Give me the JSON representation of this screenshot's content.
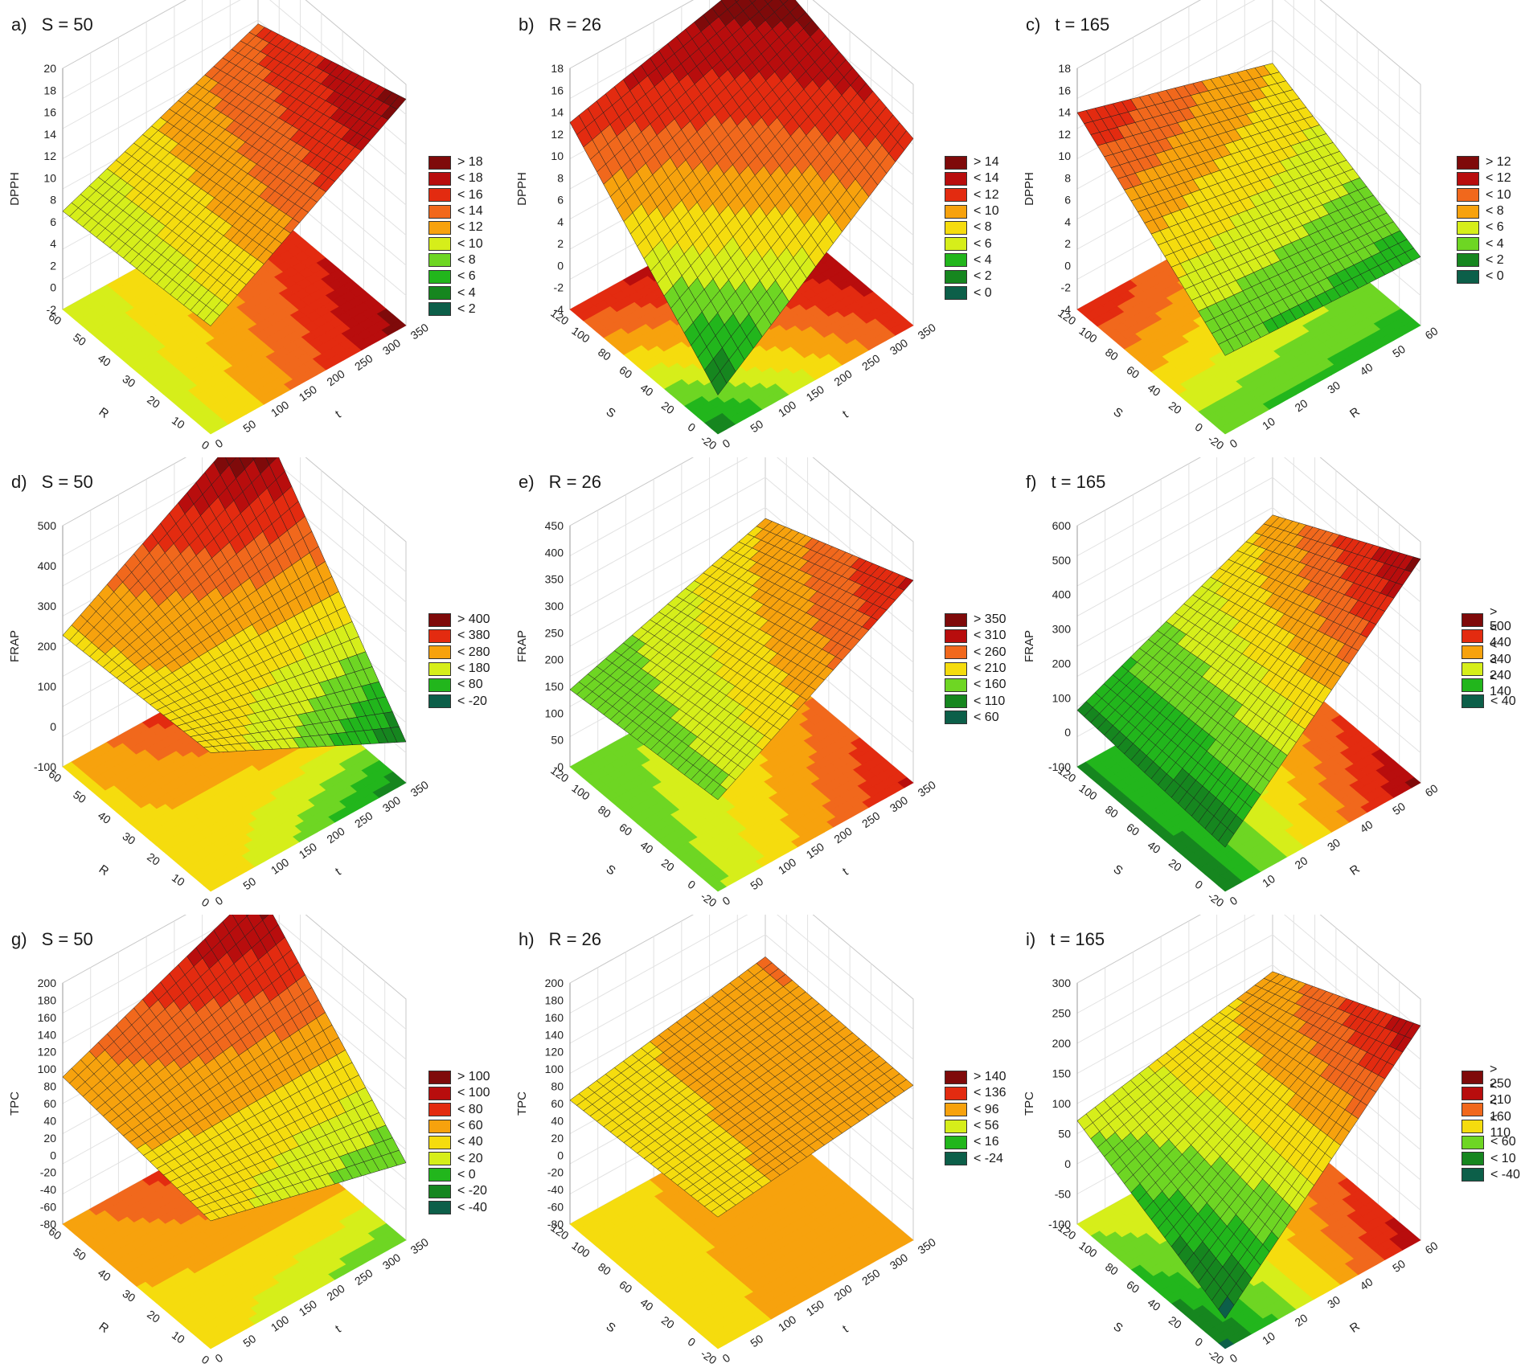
{
  "figure": {
    "surface_colors": [
      "#0c5f49",
      "#16861f",
      "#22b61c",
      "#6ed623",
      "#d6ee1a",
      "#f5dc0e",
      "#f7a20d",
      "#f1681c",
      "#e32b10",
      "#b80d0d",
      "#7f0a0a"
    ]
  },
  "chart_data": [
    {
      "id": "a",
      "label": "a)",
      "title": "S = 50",
      "type": "surface",
      "zlabel": "DPPH",
      "xlabel": "t",
      "ylabel": "R",
      "zticks": [
        "20",
        "18",
        "16",
        "14",
        "12",
        "10",
        "8",
        "6",
        "4",
        "2",
        "0",
        "-2"
      ],
      "xticks": [
        "0",
        "50",
        "100",
        "150",
        "200",
        "250",
        "300",
        "350"
      ],
      "yticks": [
        "0",
        "10",
        "20",
        "30",
        "40",
        "50",
        "60"
      ],
      "legend": [
        "> 18",
        "< 18",
        "< 16",
        "< 14",
        "< 12",
        "< 10",
        "< 8",
        "< 6",
        "< 4",
        "< 2"
      ],
      "zrange": [
        -2,
        20
      ],
      "corner_values": {
        "low_x_low_y": 7,
        "high_x_low_y": 19,
        "low_x_high_y": 6,
        "high_x_high_y": 14
      }
    },
    {
      "id": "b",
      "label": "b)",
      "title": "R = 26",
      "type": "surface",
      "zlabel": "DPPH",
      "xlabel": "t",
      "ylabel": "S",
      "zticks": [
        "18",
        "16",
        "14",
        "12",
        "10",
        "8",
        "6",
        "4",
        "2",
        "0",
        "-2",
        "-4"
      ],
      "xticks": [
        "0",
        "50",
        "100",
        "150",
        "200",
        "250",
        "300",
        "350"
      ],
      "yticks": [
        "-20",
        "0",
        "20",
        "40",
        "60",
        "80",
        "100",
        "120"
      ],
      "legend": [
        "> 14",
        "< 14",
        "< 12",
        "< 10",
        "< 8",
        "< 6",
        "< 4",
        "< 2",
        "< 0"
      ],
      "zrange": [
        -4,
        18
      ],
      "corner_values": {
        "low_x_low_y": -2,
        "high_x_low_y": 13,
        "low_x_high_y": 13,
        "high_x_high_y": 18
      }
    },
    {
      "id": "c",
      "label": "c)",
      "title": "t = 165",
      "type": "surface",
      "zlabel": "DPPH",
      "xlabel": "R",
      "ylabel": "S",
      "zticks": [
        "18",
        "16",
        "14",
        "12",
        "10",
        "8",
        "6",
        "4",
        "2",
        "0",
        "-2",
        "-4"
      ],
      "xticks": [
        "0",
        "10",
        "20",
        "30",
        "40",
        "50",
        "60"
      ],
      "yticks": [
        "-20",
        "0",
        "20",
        "40",
        "60",
        "80",
        "100",
        "120"
      ],
      "legend": [
        "> 12",
        "< 12",
        "< 10",
        "< 8",
        "< 6",
        "< 4",
        "< 2",
        "< 0"
      ],
      "zrange": [
        -4,
        18
      ],
      "corner_values": {
        "low_x_low_y": 2,
        "high_x_low_y": 1,
        "low_x_high_y": 14,
        "high_x_high_y": 8
      }
    },
    {
      "id": "d",
      "label": "d)",
      "title": "S = 50",
      "type": "surface",
      "zlabel": "FRAP",
      "xlabel": "t",
      "ylabel": "R",
      "zticks": [
        "500",
        "400",
        "300",
        "200",
        "100",
        "0",
        "-100"
      ],
      "xticks": [
        "0",
        "50",
        "100",
        "150",
        "200",
        "250",
        "300",
        "350"
      ],
      "yticks": [
        "0",
        "10",
        "20",
        "30",
        "40",
        "50",
        "60"
      ],
      "legend": [
        "> 400",
        "< 380",
        "< 280",
        "< 180",
        "< 80",
        "< -20"
      ],
      "zrange": [
        -100,
        500
      ],
      "corner_values": {
        "low_x_low_y": 230,
        "high_x_low_y": -40,
        "low_x_high_y": 210,
        "high_x_high_y": 530
      }
    },
    {
      "id": "e",
      "label": "e)",
      "title": "R = 26",
      "type": "surface",
      "zlabel": "FRAP",
      "xlabel": "t",
      "ylabel": "S",
      "zticks": [
        "450",
        "400",
        "350",
        "300",
        "250",
        "200",
        "150",
        "100",
        "50",
        "0"
      ],
      "xticks": [
        "0",
        "50",
        "100",
        "150",
        "200",
        "250",
        "300",
        "350"
      ],
      "yticks": [
        "-20",
        "0",
        "20",
        "40",
        "60",
        "80",
        "100",
        "120"
      ],
      "legend": [
        "> 350",
        "< 310",
        "< 260",
        "< 210",
        "< 160",
        "< 110",
        "< 60"
      ],
      "zrange": [
        0,
        450
      ],
      "corner_values": {
        "low_x_low_y": 150,
        "high_x_low_y": 380,
        "low_x_high_y": 120,
        "high_x_high_y": 250
      }
    },
    {
      "id": "f",
      "label": "f)",
      "title": "t = 165",
      "type": "surface",
      "zlabel": "FRAP",
      "xlabel": "R",
      "ylabel": "S",
      "zticks": [
        "600",
        "500",
        "400",
        "300",
        "200",
        "100",
        "0",
        "-100"
      ],
      "xticks": [
        "0",
        "10",
        "20",
        "30",
        "40",
        "50",
        "60"
      ],
      "yticks": [
        "-20",
        "0",
        "20",
        "40",
        "60",
        "80",
        "100",
        "120"
      ],
      "legend": [
        "> 500",
        "< 440",
        "< 340",
        "< 240",
        "< 140",
        "< 40"
      ],
      "zrange": [
        -100,
        600
      ],
      "corner_values": {
        "low_x_low_y": -20,
        "high_x_low_y": 560,
        "low_x_high_y": 20,
        "high_x_high_y": 300
      }
    },
    {
      "id": "g",
      "label": "g)",
      "title": "S = 50",
      "type": "surface",
      "zlabel": "TPC",
      "xlabel": "t",
      "ylabel": "R",
      "zticks": [
        "200",
        "180",
        "160",
        "140",
        "120",
        "100",
        "80",
        "60",
        "40",
        "20",
        "0",
        "-20",
        "-40",
        "-60",
        "-80"
      ],
      "xticks": [
        "0",
        "50",
        "100",
        "150",
        "200",
        "250",
        "300",
        "350"
      ],
      "yticks": [
        "0",
        "10",
        "20",
        "30",
        "40",
        "50",
        "60"
      ],
      "legend": [
        "> 100",
        "< 100",
        "< 80",
        "< 60",
        "< 40",
        "< 20",
        "< 0",
        "< -20",
        "< -40"
      ],
      "zrange": [
        -80,
        200
      ],
      "corner_values": {
        "low_x_low_y": 60,
        "high_x_low_y": -5,
        "low_x_high_y": 85,
        "high_x_high_y": 190
      }
    },
    {
      "id": "h",
      "label": "h)",
      "title": "R = 26",
      "type": "surface",
      "zlabel": "TPC",
      "xlabel": "t",
      "ylabel": "S",
      "zticks": [
        "200",
        "180",
        "160",
        "140",
        "120",
        "100",
        "80",
        "60",
        "40",
        "20",
        "0",
        "-20",
        "-40",
        "-60",
        "-80"
      ],
      "xticks": [
        "0",
        "50",
        "100",
        "150",
        "200",
        "250",
        "300",
        "350"
      ],
      "yticks": [
        "-20",
        "0",
        "20",
        "40",
        "60",
        "80",
        "100",
        "120"
      ],
      "legend": [
        "> 140",
        "< 136",
        "< 96",
        "< 56",
        "< 16",
        "< -24"
      ],
      "zrange": [
        -80,
        200
      ],
      "corner_values": {
        "low_x_low_y": 65,
        "high_x_low_y": 95,
        "low_x_high_y": 55,
        "high_x_high_y": 100
      }
    },
    {
      "id": "i",
      "label": "i)",
      "title": "t = 165",
      "type": "surface",
      "zlabel": "TPC",
      "xlabel": "R",
      "ylabel": "S",
      "zticks": [
        "300",
        "250",
        "200",
        "150",
        "100",
        "50",
        "0",
        "-50",
        "-100"
      ],
      "xticks": [
        "0",
        "10",
        "20",
        "30",
        "40",
        "50",
        "60"
      ],
      "yticks": [
        "-20",
        "0",
        "20",
        "40",
        "60",
        "80",
        "100",
        "120"
      ],
      "legend": [
        "> 250",
        "< 210",
        "< 160",
        "< 110",
        "< 60",
        "< 10",
        "< -40"
      ],
      "zrange": [
        -100,
        300
      ],
      "corner_values": {
        "low_x_low_y": -80,
        "high_x_low_y": 260,
        "low_x_high_y": 55,
        "high_x_high_y": 130
      }
    }
  ]
}
